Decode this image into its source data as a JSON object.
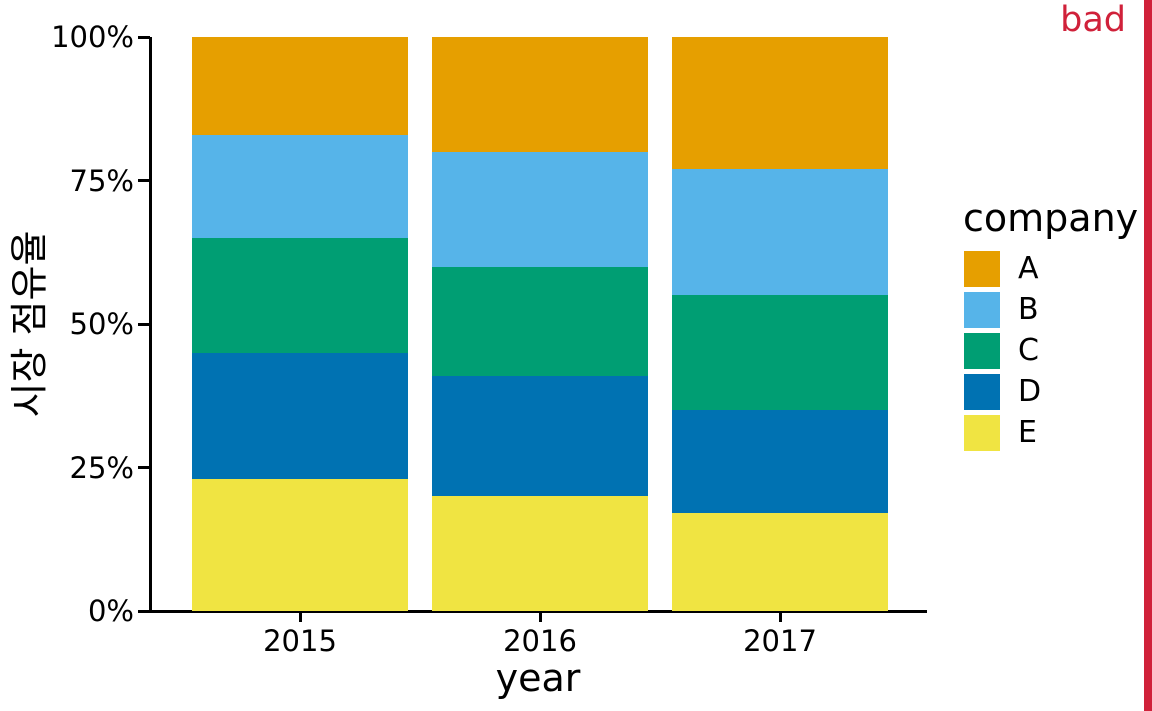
{
  "stamp": {
    "label": "bad",
    "color": "#D0213A"
  },
  "chart_data": {
    "type": "bar",
    "subtype": "stacked-percent",
    "title": "",
    "categories": [
      "2015",
      "2016",
      "2017"
    ],
    "series": [
      {
        "name": "A",
        "color": "#E69F00",
        "values": [
          17,
          20,
          23
        ]
      },
      {
        "name": "B",
        "color": "#56B4E9",
        "values": [
          18,
          20,
          22
        ]
      },
      {
        "name": "C",
        "color": "#009E73",
        "values": [
          20,
          19,
          20
        ]
      },
      {
        "name": "D",
        "color": "#0072B2",
        "values": [
          22,
          21,
          18
        ]
      },
      {
        "name": "E",
        "color": "#F0E442",
        "values": [
          23,
          20,
          17
        ]
      }
    ],
    "stack_order_bottom_to_top": [
      "E",
      "D",
      "C",
      "B",
      "A"
    ],
    "xlabel": "year",
    "ylabel": "시장 점유율",
    "ylim": [
      0,
      100
    ],
    "y_ticks": [
      {
        "value": 0,
        "label": "0%"
      },
      {
        "value": 25,
        "label": "25%"
      },
      {
        "value": 50,
        "label": "50%"
      },
      {
        "value": 75,
        "label": "75%"
      },
      {
        "value": 100,
        "label": "100%"
      }
    ],
    "grid": "off",
    "legend": {
      "title": "company",
      "entries": [
        "A",
        "B",
        "C",
        "D",
        "E"
      ],
      "position": "right"
    },
    "background_color": "#FFFFFF",
    "axis_color": "#000000"
  }
}
